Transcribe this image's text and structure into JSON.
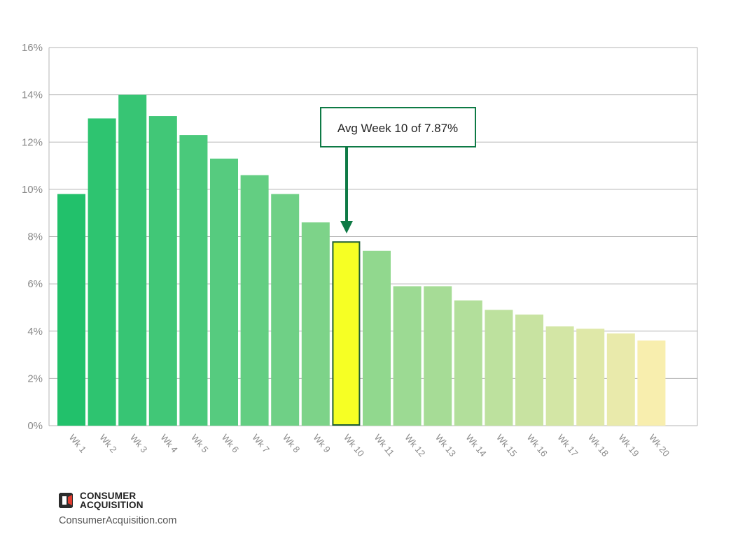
{
  "chart_data": {
    "type": "bar",
    "title": "",
    "xlabel": "",
    "ylabel": "",
    "ylim": [
      0,
      16
    ],
    "y_ticks": [
      "0%",
      "2%",
      "4%",
      "6%",
      "8%",
      "10%",
      "12%",
      "14%",
      "16%"
    ],
    "grid": "horizontal",
    "categories": [
      "Wk 1",
      "Wk 2",
      "Wk 3",
      "Wk 4",
      "Wk 5",
      "Wk 6",
      "Wk 7",
      "Wk 8",
      "Wk 9",
      "Wk 10",
      "Wk 11",
      "Wk 12",
      "Wk 13",
      "Wk 14",
      "Wk 15",
      "Wk 16",
      "Wk 17",
      "Wk 18",
      "Wk 19",
      "Wk 20"
    ],
    "values": [
      9.8,
      13.0,
      14.0,
      13.1,
      12.3,
      11.3,
      10.6,
      9.8,
      8.6,
      7.8,
      7.4,
      5.9,
      5.9,
      5.3,
      4.9,
      4.7,
      4.2,
      4.1,
      3.9,
      3.6
    ],
    "bar_colors": [
      "#22c16b",
      "#2ec470",
      "#37c574",
      "#41c777",
      "#4ac97b",
      "#56cb7f",
      "#63ce82",
      "#6fd086",
      "#7dd389",
      "#f6ff24",
      "#91d88e",
      "#9cda93",
      "#a6dc96",
      "#b2df9b",
      "#bde19e",
      "#c8e3a1",
      "#d3e6a5",
      "#dfe8a8",
      "#e9eaab",
      "#f8eeae"
    ],
    "highlight_index": 9,
    "highlight_stroke": "#1e5e34",
    "annotation": {
      "text": "Avg Week 10 of 7.87%",
      "color": "#0e7a45",
      "target_category": "Wk 10"
    }
  },
  "branding": {
    "name_line1": "CONSUMER",
    "name_line2": "ACQUISITION",
    "url": "ConsumerAcquisition.com",
    "logo_colors": [
      "#2c2c2c",
      "#e23b2e"
    ]
  }
}
